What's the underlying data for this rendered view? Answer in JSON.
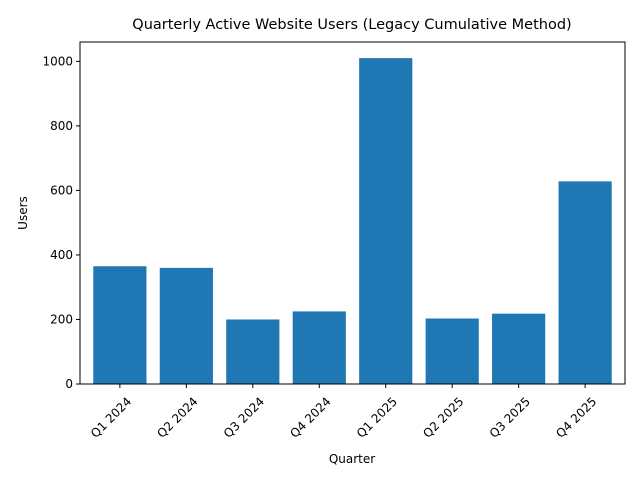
{
  "chart_data": {
    "type": "bar",
    "title": "Quarterly Active Website Users (Legacy Cumulative Method)",
    "xlabel": "Quarter",
    "ylabel": "Users",
    "categories": [
      "Q1 2024",
      "Q2 2024",
      "Q3 2024",
      "Q4 2024",
      "Q1 2025",
      "Q2 2025",
      "Q3 2025",
      "Q4 2025"
    ],
    "values": [
      365,
      360,
      200,
      225,
      1010,
      203,
      218,
      628
    ],
    "ylim": [
      0,
      1060
    ],
    "yticks": [
      0,
      200,
      400,
      600,
      800,
      1000
    ],
    "bar_color": "#1f77b4",
    "grid": false,
    "legend": "none"
  }
}
